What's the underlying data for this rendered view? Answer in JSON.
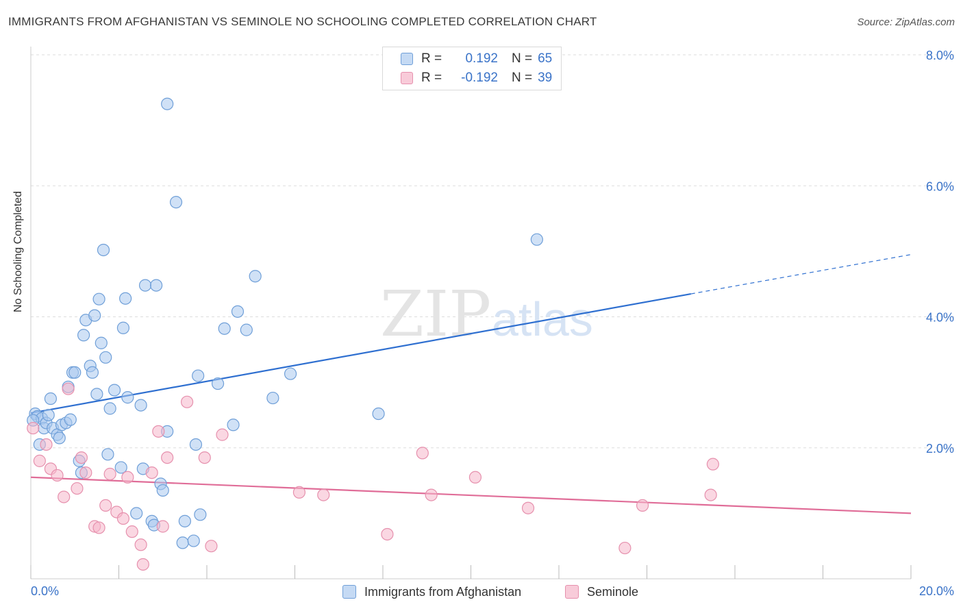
{
  "title": "IMMIGRANTS FROM AFGHANISTAN VS SEMINOLE NO SCHOOLING COMPLETED CORRELATION CHART",
  "source": "Source: ZipAtlas.com",
  "watermark": {
    "zip": "ZIP",
    "atlas": "atlas"
  },
  "colors": {
    "blue_fill": "#a9c8ee",
    "blue_stroke": "#6f9fd8",
    "blue_line": "#2e6fd0",
    "pink_fill": "#f5b6cb",
    "pink_stroke": "#e690ad",
    "pink_line": "#e06d98",
    "tick_label": "#3a73c8",
    "grid": "#dddddd"
  },
  "legend": {
    "rows": [
      {
        "r_label": "R =",
        "r_value": "0.192",
        "n_label": "N =",
        "n_value": "65"
      },
      {
        "r_label": "R =",
        "r_value": "-0.192",
        "n_label": "N =",
        "n_value": "39"
      }
    ]
  },
  "bottom_legend": {
    "series1": "Immigrants from Afghanistan",
    "series2": "Seminole"
  },
  "chart_data": {
    "type": "scatter",
    "title": "IMMIGRANTS FROM AFGHANISTAN VS SEMINOLE NO SCHOOLING COMPLETED CORRELATION CHART",
    "xlabel": "",
    "ylabel": "No Schooling Completed",
    "xlim": [
      0,
      20
    ],
    "ylim": [
      0,
      8
    ],
    "x_tick_labels": [
      "0.0%",
      "20.0%"
    ],
    "y_ticks": [
      2,
      4,
      6,
      8
    ],
    "y_tick_labels": [
      "2.0%",
      "4.0%",
      "6.0%",
      "8.0%"
    ],
    "grid": true,
    "legend_position": "top-center",
    "series": [
      {
        "name": "Immigrants from Afghanistan",
        "r": 0.192,
        "n": 65,
        "trend": {
          "x": [
            0,
            15
          ],
          "y": [
            2.53,
            4.35
          ],
          "dashed_extension": {
            "x": [
              15,
              20
            ],
            "y": [
              4.35,
              4.95
            ]
          }
        },
        "points": [
          [
            0.1,
            2.52
          ],
          [
            0.15,
            2.48
          ],
          [
            0.25,
            2.45
          ],
          [
            0.2,
            2.05
          ],
          [
            0.3,
            2.3
          ],
          [
            0.35,
            2.38
          ],
          [
            0.4,
            2.5
          ],
          [
            0.45,
            2.75
          ],
          [
            0.5,
            2.3
          ],
          [
            0.6,
            2.2
          ],
          [
            0.65,
            2.15
          ],
          [
            0.7,
            2.35
          ],
          [
            0.8,
            2.38
          ],
          [
            0.9,
            2.43
          ],
          [
            0.85,
            2.93
          ],
          [
            0.95,
            3.15
          ],
          [
            1.0,
            3.15
          ],
          [
            1.1,
            1.8
          ],
          [
            1.15,
            1.62
          ],
          [
            1.2,
            3.72
          ],
          [
            1.25,
            3.95
          ],
          [
            1.35,
            3.25
          ],
          [
            1.4,
            3.15
          ],
          [
            1.45,
            4.02
          ],
          [
            1.5,
            2.82
          ],
          [
            1.55,
            4.27
          ],
          [
            1.6,
            3.6
          ],
          [
            1.65,
            5.02
          ],
          [
            1.7,
            3.38
          ],
          [
            1.75,
            1.9
          ],
          [
            1.8,
            2.6
          ],
          [
            1.9,
            2.88
          ],
          [
            2.05,
            1.7
          ],
          [
            2.1,
            3.83
          ],
          [
            2.15,
            4.28
          ],
          [
            2.2,
            2.77
          ],
          [
            2.4,
            1.0
          ],
          [
            2.5,
            2.65
          ],
          [
            2.55,
            1.68
          ],
          [
            2.6,
            4.48
          ],
          [
            2.75,
            0.88
          ],
          [
            2.8,
            0.82
          ],
          [
            2.85,
            4.48
          ],
          [
            2.95,
            1.45
          ],
          [
            3.0,
            1.35
          ],
          [
            3.1,
            2.25
          ],
          [
            3.1,
            7.25
          ],
          [
            3.3,
            5.75
          ],
          [
            3.5,
            0.88
          ],
          [
            3.45,
            0.55
          ],
          [
            3.7,
            0.58
          ],
          [
            3.75,
            2.05
          ],
          [
            3.8,
            3.1
          ],
          [
            3.85,
            0.98
          ],
          [
            4.25,
            2.98
          ],
          [
            4.4,
            3.82
          ],
          [
            4.6,
            2.35
          ],
          [
            4.7,
            4.08
          ],
          [
            4.9,
            3.8
          ],
          [
            5.1,
            4.62
          ],
          [
            5.5,
            2.76
          ],
          [
            5.9,
            3.13
          ],
          [
            7.9,
            2.52
          ],
          [
            11.5,
            5.18
          ],
          [
            0.05,
            2.42
          ]
        ]
      },
      {
        "name": "Seminole",
        "r": -0.192,
        "n": 39,
        "trend": {
          "x": [
            0,
            20
          ],
          "y": [
            1.55,
            1.0
          ]
        },
        "points": [
          [
            0.05,
            2.3
          ],
          [
            0.2,
            1.8
          ],
          [
            0.35,
            2.05
          ],
          [
            0.45,
            1.68
          ],
          [
            0.6,
            1.58
          ],
          [
            0.75,
            1.25
          ],
          [
            0.85,
            2.9
          ],
          [
            1.05,
            1.38
          ],
          [
            1.15,
            1.85
          ],
          [
            1.25,
            1.62
          ],
          [
            1.45,
            0.8
          ],
          [
            1.55,
            0.78
          ],
          [
            1.7,
            1.12
          ],
          [
            1.8,
            1.6
          ],
          [
            1.95,
            1.02
          ],
          [
            2.1,
            0.92
          ],
          [
            2.2,
            1.55
          ],
          [
            2.3,
            0.72
          ],
          [
            2.5,
            0.52
          ],
          [
            2.55,
            0.22
          ],
          [
            2.75,
            1.62
          ],
          [
            2.9,
            2.25
          ],
          [
            3.0,
            0.8
          ],
          [
            3.1,
            1.85
          ],
          [
            3.55,
            2.7
          ],
          [
            3.95,
            1.85
          ],
          [
            4.1,
            0.5
          ],
          [
            4.35,
            2.2
          ],
          [
            6.1,
            1.32
          ],
          [
            6.65,
            1.28
          ],
          [
            8.1,
            0.68
          ],
          [
            8.9,
            1.92
          ],
          [
            9.1,
            1.28
          ],
          [
            10.1,
            1.55
          ],
          [
            11.3,
            1.08
          ],
          [
            13.5,
            0.47
          ],
          [
            13.9,
            1.12
          ],
          [
            15.45,
            1.28
          ],
          [
            15.5,
            1.75
          ]
        ]
      }
    ]
  }
}
